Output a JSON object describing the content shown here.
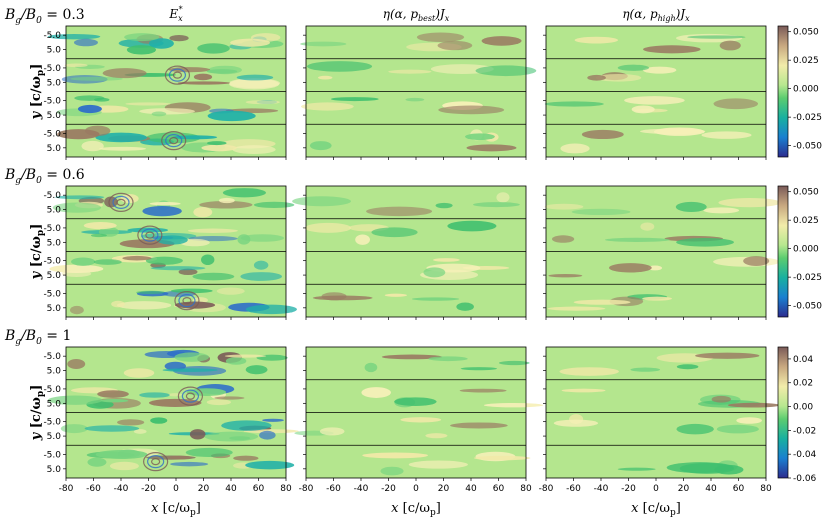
{
  "chart_data": {
    "type": "heatmap",
    "rows": [
      {
        "label": "B_g/B_0 = 0.3",
        "label_parts": {
          "main": "B",
          "sub1": "g",
          "div": "/B",
          "sub2": "0",
          "eq": " = 0.3"
        },
        "colorbar_ticks": [
          "0.050",
          "0.025",
          "0.000",
          "-0.025",
          "-0.050"
        ],
        "vmin": -0.06,
        "vmax": 0.055
      },
      {
        "label": "B_g/B_0 = 0.6",
        "label_parts": {
          "main": "B",
          "sub1": "g",
          "div": "/B",
          "sub2": "0",
          "eq": " = 0.6"
        },
        "colorbar_ticks": [
          "0.050",
          "0.025",
          "0.000",
          "-0.025",
          "-0.050"
        ],
        "vmin": -0.06,
        "vmax": 0.055
      },
      {
        "label": "B_g/B_0 = 1",
        "label_parts": {
          "main": "B",
          "sub1": "g",
          "div": "/B",
          "sub2": "0",
          "eq": " = 1"
        },
        "colorbar_ticks": [
          "0.04",
          "0.02",
          "0.00",
          "-0.02",
          "-0.04",
          "-0.06"
        ],
        "vmin": -0.06,
        "vmax": 0.05
      }
    ],
    "columns": [
      {
        "title": "E_x*",
        "title_parts": {
          "main": "E",
          "sub": "x",
          "sup": "*"
        }
      },
      {
        "title": "η(α, p_best) J_x",
        "title_parts": {
          "eta": "η(α, p",
          "sub": "best",
          "tail": ")J",
          "sub2": "x"
        }
      },
      {
        "title": "η(α, p_high) J_x",
        "title_parts": {
          "eta": "η(α, p",
          "sub": "high",
          "tail": ")J",
          "sub2": "x"
        }
      }
    ],
    "xlabel": "x [c/ω_p]",
    "xlabel_parts": {
      "var": "x",
      "unit": "[c/ω",
      "sub": "p",
      "close": "]"
    },
    "ylabel": "y [c/ω_p]",
    "ylabel_parts": {
      "var": "y",
      "unit": "[c/ω",
      "sub": "p",
      "close": "]"
    },
    "x_ticks": [
      "-80",
      "-60",
      "-40",
      "-20",
      "0",
      "20",
      "40",
      "60",
      "80"
    ],
    "y_ticks": [
      "-5.0",
      "5.0"
    ],
    "xlim": [
      -80,
      80
    ],
    "strips_per_panel": 4,
    "colormap": "terrain-like",
    "colors": {
      "low": "#3a3a9a",
      "mid_low": "#1aa8a0",
      "zero": "#a8e08a",
      "mid_high": "#f0e8a0",
      "high": "#8a6a5a"
    }
  }
}
